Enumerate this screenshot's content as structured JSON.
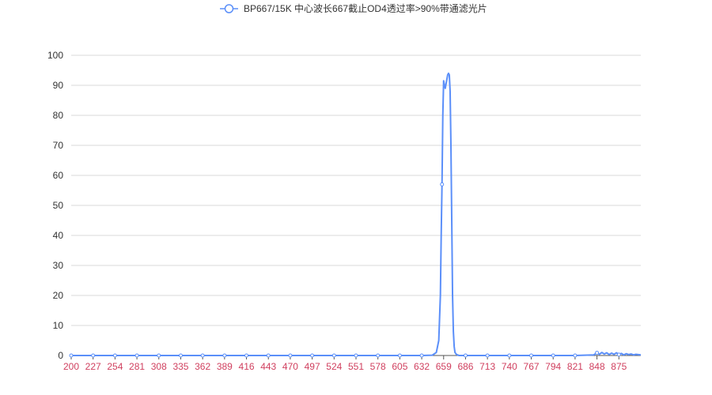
{
  "chart_data": {
    "type": "line",
    "legend": {
      "position": "top-center"
    },
    "series": [
      {
        "name": "BP667/15K 中心波长667截止OD4透过率>90%带通滤光片",
        "color": "#5B8FF9",
        "points": [
          [
            200,
            0.0
          ],
          [
            227,
            0.0
          ],
          [
            254,
            0.0
          ],
          [
            281,
            0.0
          ],
          [
            308,
            0.0
          ],
          [
            335,
            0.0
          ],
          [
            362,
            0.0
          ],
          [
            389,
            0.0
          ],
          [
            416,
            0.0
          ],
          [
            443,
            0.0
          ],
          [
            470,
            0.0
          ],
          [
            497,
            0.0
          ],
          [
            524,
            0.0
          ],
          [
            551,
            0.0
          ],
          [
            578,
            0.0
          ],
          [
            605,
            0.0
          ],
          [
            632,
            0.0
          ],
          [
            645,
            0.1
          ],
          [
            650,
            1.0
          ],
          [
            653,
            5.0
          ],
          [
            655,
            20.0
          ],
          [
            656,
            40.0
          ],
          [
            657,
            57.0
          ],
          [
            658,
            80.0
          ],
          [
            659,
            91.5
          ],
          [
            660,
            90.0
          ],
          [
            661,
            89.0
          ],
          [
            662,
            90.5
          ],
          [
            663,
            92.0
          ],
          [
            664,
            93.5
          ],
          [
            665,
            94.0
          ],
          [
            666,
            93.5
          ],
          [
            667,
            88.0
          ],
          [
            668,
            70.0
          ],
          [
            669,
            45.0
          ],
          [
            670,
            20.0
          ],
          [
            671,
            8.0
          ],
          [
            672,
            3.0
          ],
          [
            673,
            1.0
          ],
          [
            675,
            0.3
          ],
          [
            678,
            0.0
          ],
          [
            686,
            0.0
          ],
          [
            713,
            0.0
          ],
          [
            740,
            0.0
          ],
          [
            767,
            0.0
          ],
          [
            794,
            0.0
          ],
          [
            821,
            0.0
          ],
          [
            844,
            0.2
          ],
          [
            848,
            0.9
          ],
          [
            851,
            0.4
          ],
          [
            854,
            1.0
          ],
          [
            857,
            0.5
          ],
          [
            860,
            0.9
          ],
          [
            863,
            0.3
          ],
          [
            866,
            0.8
          ],
          [
            869,
            0.4
          ],
          [
            872,
            0.9
          ],
          [
            875,
            0.3
          ],
          [
            878,
            0.7
          ],
          [
            881,
            0.2
          ],
          [
            884,
            0.6
          ],
          [
            887,
            0.3
          ],
          [
            890,
            0.5
          ],
          [
            893,
            0.2
          ],
          [
            896,
            0.4
          ],
          [
            899,
            0.3
          ],
          [
            902,
            0.2
          ]
        ],
        "markers": [
          [
            200,
            0.0
          ],
          [
            227,
            0.0
          ],
          [
            254,
            0.0
          ],
          [
            281,
            0.0
          ],
          [
            308,
            0.0
          ],
          [
            335,
            0.0
          ],
          [
            362,
            0.0
          ],
          [
            389,
            0.0
          ],
          [
            416,
            0.0
          ],
          [
            443,
            0.0
          ],
          [
            470,
            0.0
          ],
          [
            497,
            0.0
          ],
          [
            524,
            0.0
          ],
          [
            551,
            0.0
          ],
          [
            578,
            0.0
          ],
          [
            605,
            0.0
          ],
          [
            632,
            0.0
          ],
          [
            657,
            57.0
          ],
          [
            686,
            0.0
          ],
          [
            713,
            0.0
          ],
          [
            740,
            0.0
          ],
          [
            767,
            0.0
          ],
          [
            794,
            0.0
          ],
          [
            821,
            0.0
          ],
          [
            848,
            0.9
          ],
          [
            875,
            0.3
          ]
        ]
      }
    ],
    "x_ticks": [
      "200",
      "227",
      "254",
      "281",
      "308",
      "335",
      "362",
      "389",
      "416",
      "443",
      "470",
      "497",
      "524",
      "551",
      "578",
      "605",
      "632",
      "659",
      "686",
      "713",
      "740",
      "767",
      "794",
      "821",
      "848",
      "875"
    ],
    "xlim": [
      200,
      902
    ],
    "y_ticks": [
      "0",
      "10",
      "20",
      "30",
      "40",
      "50",
      "60",
      "70",
      "80",
      "90",
      "100"
    ],
    "ylim": [
      0,
      100
    ],
    "grid": {
      "horizontal": true,
      "vertical": false
    },
    "colors": {
      "grid": "#d9d9d9",
      "axis": "#555555",
      "x_tick_label": "#d0405f",
      "y_tick_label": "#333333"
    }
  }
}
